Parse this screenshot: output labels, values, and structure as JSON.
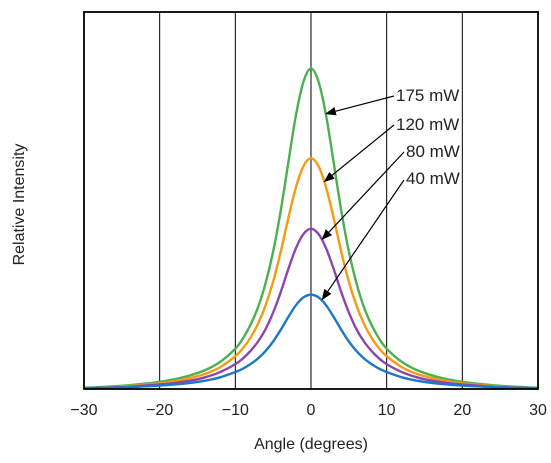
{
  "chart_data": {
    "type": "line",
    "title": "",
    "xlabel": "Angle (degrees)",
    "ylabel": "Relative Intensity",
    "xlim": [
      -30,
      30
    ],
    "ylim": [
      0,
      1
    ],
    "xticks": [
      -30,
      -20,
      -10,
      0,
      10,
      20,
      30
    ],
    "xtick_labels": [
      "−30",
      "−20",
      "−10",
      "0",
      "10",
      "20",
      "30"
    ],
    "grid": "vertical",
    "x": [
      -30,
      -28,
      -26,
      -24,
      -22,
      -20,
      -18,
      -16,
      -14,
      -12,
      -10,
      -9,
      -8,
      -7,
      -6,
      -5,
      -4,
      -3,
      -2,
      -1,
      0,
      1,
      2,
      3,
      4,
      5,
      6,
      7,
      8,
      9,
      10,
      12,
      14,
      16,
      18,
      20,
      22,
      24,
      26,
      28,
      30
    ],
    "series": [
      {
        "name": "40 mW",
        "color": "#1f77c8",
        "values": [
          0.002,
          0.003,
          0.004,
          0.005,
          0.007,
          0.009,
          0.012,
          0.016,
          0.022,
          0.031,
          0.045,
          0.054,
          0.066,
          0.081,
          0.101,
          0.126,
          0.157,
          0.191,
          0.222,
          0.243,
          0.25,
          0.243,
          0.222,
          0.191,
          0.157,
          0.126,
          0.101,
          0.081,
          0.066,
          0.054,
          0.045,
          0.031,
          0.022,
          0.016,
          0.012,
          0.009,
          0.007,
          0.005,
          0.004,
          0.003,
          0.002
        ]
      },
      {
        "name": "80 mW",
        "color": "#8e44ad",
        "values": [
          0.002,
          0.003,
          0.004,
          0.006,
          0.009,
          0.012,
          0.016,
          0.022,
          0.031,
          0.045,
          0.066,
          0.081,
          0.101,
          0.126,
          0.159,
          0.203,
          0.257,
          0.318,
          0.373,
          0.411,
          0.425,
          0.411,
          0.373,
          0.318,
          0.257,
          0.203,
          0.159,
          0.126,
          0.101,
          0.081,
          0.066,
          0.045,
          0.031,
          0.022,
          0.016,
          0.012,
          0.009,
          0.006,
          0.004,
          0.003,
          0.002
        ]
      },
      {
        "name": "120 mW",
        "color": "#f39c12",
        "values": [
          0.002,
          0.003,
          0.005,
          0.008,
          0.011,
          0.015,
          0.021,
          0.029,
          0.04,
          0.058,
          0.087,
          0.108,
          0.136,
          0.173,
          0.222,
          0.285,
          0.364,
          0.453,
          0.534,
          0.591,
          0.612,
          0.591,
          0.534,
          0.453,
          0.364,
          0.285,
          0.222,
          0.173,
          0.136,
          0.108,
          0.087,
          0.058,
          0.04,
          0.029,
          0.021,
          0.015,
          0.011,
          0.008,
          0.005,
          0.003,
          0.002
        ]
      },
      {
        "name": "175 mW",
        "color": "#4caf50",
        "values": [
          0.003,
          0.005,
          0.007,
          0.01,
          0.014,
          0.019,
          0.026,
          0.036,
          0.05,
          0.072,
          0.107,
          0.134,
          0.17,
          0.217,
          0.281,
          0.365,
          0.473,
          0.6,
          0.725,
          0.815,
          0.85,
          0.815,
          0.725,
          0.6,
          0.473,
          0.365,
          0.281,
          0.217,
          0.17,
          0.134,
          0.107,
          0.072,
          0.05,
          0.036,
          0.026,
          0.019,
          0.014,
          0.01,
          0.007,
          0.005,
          0.003
        ]
      }
    ],
    "annotations": [
      {
        "text": "175 mW",
        "series": "175 mW",
        "target_x": 2.0
      },
      {
        "text": "120 mW",
        "series": "120 mW",
        "target_x": 1.8
      },
      {
        "text": "80 mW",
        "series": "80 mW",
        "target_x": 1.5
      },
      {
        "text": "40 mW",
        "series": "40 mW",
        "target_x": 1.5
      }
    ]
  }
}
